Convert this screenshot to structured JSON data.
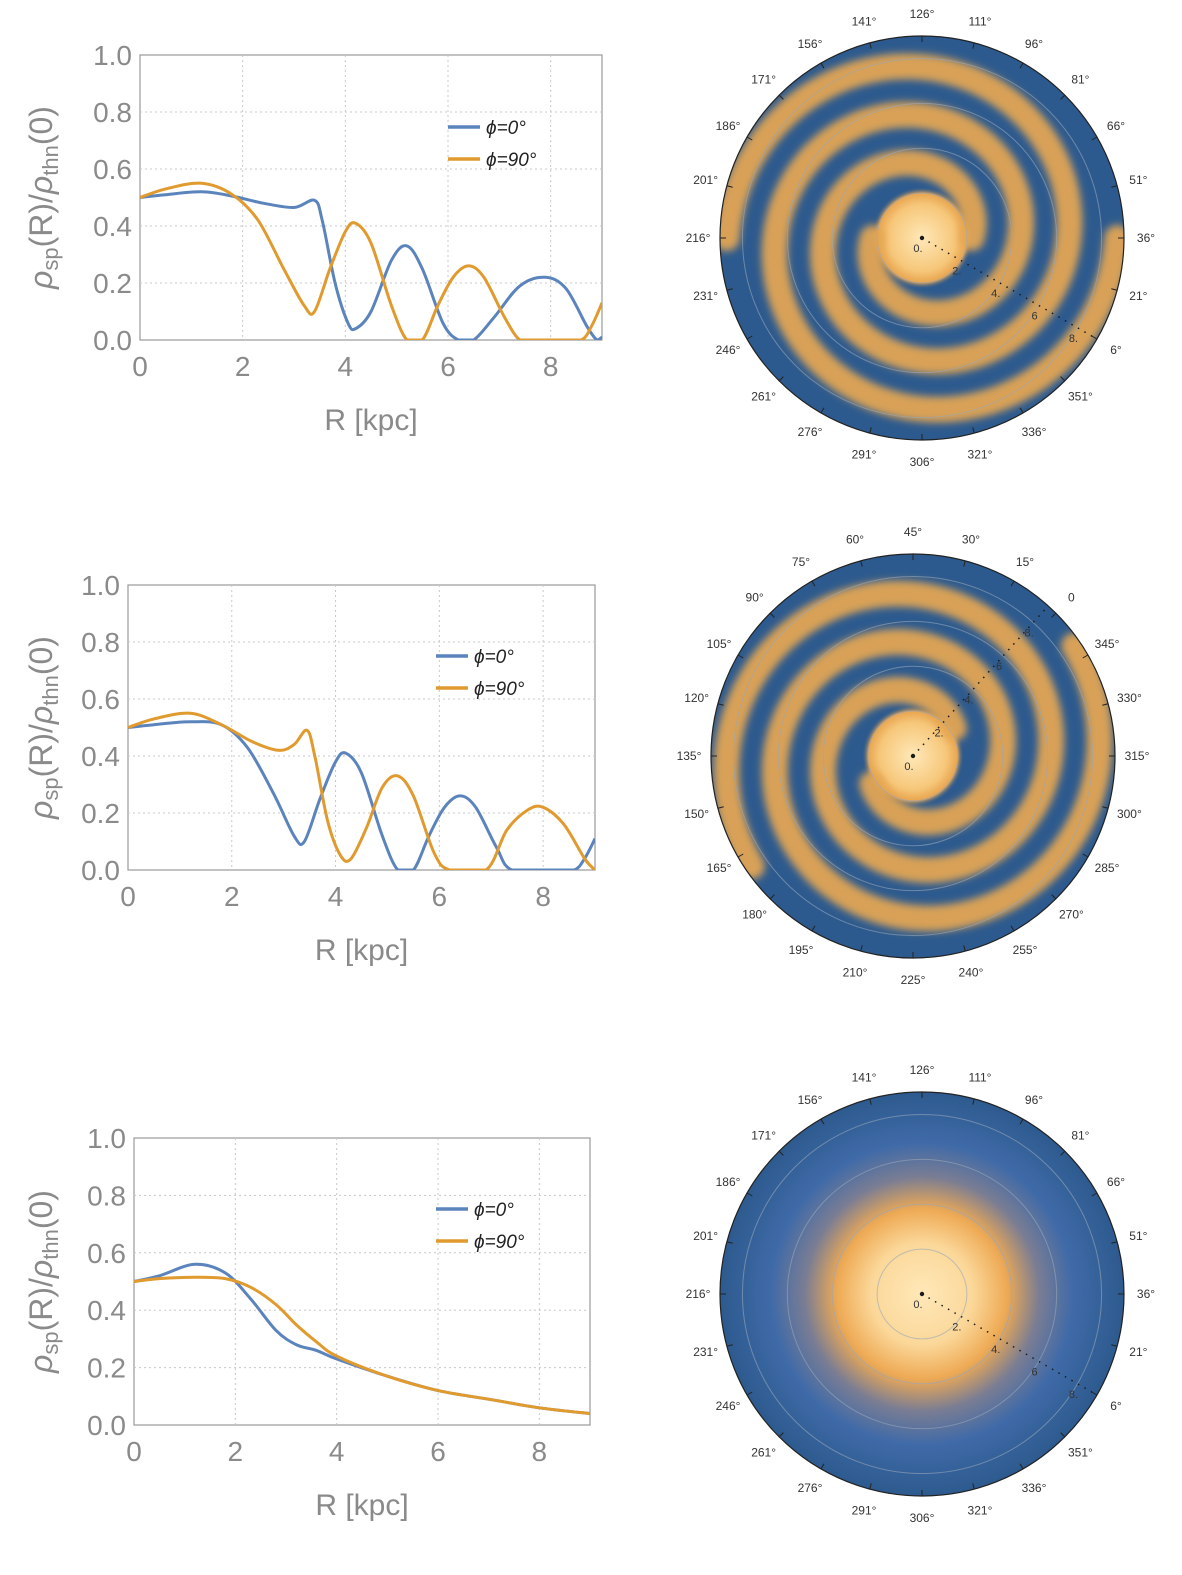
{
  "colors": {
    "blue": "#5b84bd",
    "orange": "#e09a2e",
    "frame": "#9a9a9a",
    "grid": "#c8c8c8",
    "disk_dark": "#2d5a8e",
    "disk_light": "#ffe8b8",
    "arm": "#e6a752",
    "polar_text": "#333333"
  },
  "axis_labels": {
    "ylabel_rho": "ρ",
    "ylabel_sp": "sp",
    "ylabel_mid": "(R)/",
    "ylabel_thn": "thn",
    "ylabel_end": "(0)",
    "xlabel": "R [kpc]"
  },
  "polar_labels": {
    "radius_ticks": [
      "0.",
      "2.",
      "4.",
      "6",
      "8."
    ],
    "panel2_outer_tick": "0"
  },
  "chart_data": [
    {
      "type": "line",
      "panel": "top-left",
      "xlabel": "R [kpc]",
      "ylabel": "ρsp(R)/ρthn(0)",
      "xlim": [
        0,
        9
      ],
      "ylim": [
        0,
        1
      ],
      "xticks": [
        "0",
        "2",
        "4",
        "6",
        "8"
      ],
      "yticks": [
        "0.0",
        "0.2",
        "0.4",
        "0.6",
        "0.8",
        "1.0"
      ],
      "legend_position": "top-right",
      "series": [
        {
          "name": "ϕ=0°",
          "points": [
            [
              0,
              0.5
            ],
            [
              0.5,
              0.51
            ],
            [
              1.2,
              0.52
            ],
            [
              1.8,
              0.505
            ],
            [
              2.4,
              0.48
            ],
            [
              3.0,
              0.465
            ],
            [
              3.4,
              0.49
            ],
            [
              3.55,
              0.42
            ],
            [
              3.8,
              0.2
            ],
            [
              4.05,
              0.06
            ],
            [
              4.2,
              0.04
            ],
            [
              4.5,
              0.1
            ],
            [
              4.9,
              0.28
            ],
            [
              5.2,
              0.33
            ],
            [
              5.5,
              0.25
            ],
            [
              5.9,
              0.06
            ],
            [
              6.2,
              0.0
            ],
            [
              6.5,
              0.0
            ],
            [
              6.9,
              0.08
            ],
            [
              7.4,
              0.19
            ],
            [
              7.9,
              0.22
            ],
            [
              8.3,
              0.18
            ],
            [
              8.7,
              0.05
            ],
            [
              8.9,
              0.0
            ],
            [
              9.0,
              0.01
            ]
          ]
        },
        {
          "name": "ϕ=90°",
          "points": [
            [
              0,
              0.5
            ],
            [
              0.5,
              0.53
            ],
            [
              1.2,
              0.55
            ],
            [
              1.8,
              0.51
            ],
            [
              2.3,
              0.42
            ],
            [
              2.8,
              0.25
            ],
            [
              3.2,
              0.12
            ],
            [
              3.4,
              0.1
            ],
            [
              3.7,
              0.25
            ],
            [
              4.0,
              0.38
            ],
            [
              4.2,
              0.41
            ],
            [
              4.5,
              0.34
            ],
            [
              4.9,
              0.12
            ],
            [
              5.2,
              0.0
            ],
            [
              5.5,
              0.0
            ],
            [
              5.8,
              0.12
            ],
            [
              6.1,
              0.22
            ],
            [
              6.4,
              0.26
            ],
            [
              6.7,
              0.22
            ],
            [
              7.1,
              0.08
            ],
            [
              7.4,
              0.0
            ],
            [
              7.7,
              0.0
            ],
            [
              8.2,
              0.0
            ],
            [
              8.6,
              0.0
            ],
            [
              8.8,
              0.05
            ],
            [
              9.0,
              0.13
            ]
          ]
        }
      ]
    },
    {
      "type": "line",
      "panel": "middle-left",
      "xlabel": "R [kpc]",
      "ylabel": "ρsp(R)/ρthn(0)",
      "xlim": [
        0,
        9
      ],
      "ylim": [
        0,
        1
      ],
      "xticks": [
        "0",
        "2",
        "4",
        "6",
        "8"
      ],
      "yticks": [
        "0.0",
        "0.2",
        "0.4",
        "0.6",
        "0.8",
        "1.0"
      ],
      "legend_position": "top-right",
      "series": [
        {
          "name": "ϕ=0°",
          "points": [
            [
              0,
              0.5
            ],
            [
              0.5,
              0.51
            ],
            [
              1.2,
              0.52
            ],
            [
              1.8,
              0.51
            ],
            [
              2.3,
              0.43
            ],
            [
              2.8,
              0.27
            ],
            [
              3.2,
              0.12
            ],
            [
              3.4,
              0.1
            ],
            [
              3.7,
              0.25
            ],
            [
              4.0,
              0.38
            ],
            [
              4.2,
              0.41
            ],
            [
              4.5,
              0.34
            ],
            [
              4.9,
              0.12
            ],
            [
              5.2,
              0.0
            ],
            [
              5.5,
              0.0
            ],
            [
              5.8,
              0.12
            ],
            [
              6.1,
              0.22
            ],
            [
              6.4,
              0.26
            ],
            [
              6.7,
              0.22
            ],
            [
              7.1,
              0.08
            ],
            [
              7.4,
              0.0
            ],
            [
              8.2,
              0.0
            ],
            [
              8.6,
              0.0
            ],
            [
              8.8,
              0.04
            ],
            [
              9.0,
              0.11
            ]
          ]
        },
        {
          "name": "ϕ=90°",
          "points": [
            [
              0,
              0.5
            ],
            [
              0.5,
              0.53
            ],
            [
              1.2,
              0.55
            ],
            [
              1.8,
              0.51
            ],
            [
              2.4,
              0.45
            ],
            [
              2.9,
              0.42
            ],
            [
              3.2,
              0.44
            ],
            [
              3.45,
              0.49
            ],
            [
              3.6,
              0.4
            ],
            [
              3.85,
              0.17
            ],
            [
              4.1,
              0.05
            ],
            [
              4.3,
              0.04
            ],
            [
              4.6,
              0.15
            ],
            [
              4.9,
              0.29
            ],
            [
              5.2,
              0.33
            ],
            [
              5.5,
              0.26
            ],
            [
              5.9,
              0.06
            ],
            [
              6.2,
              0.0
            ],
            [
              6.9,
              0.0
            ],
            [
              7.3,
              0.14
            ],
            [
              7.7,
              0.21
            ],
            [
              8.0,
              0.22
            ],
            [
              8.4,
              0.16
            ],
            [
              8.8,
              0.04
            ],
            [
              9.0,
              0.0
            ]
          ]
        }
      ]
    },
    {
      "type": "line",
      "panel": "bottom-left",
      "xlabel": "R [kpc]",
      "ylabel": "ρsp(R)/ρthn(0)",
      "xlim": [
        0,
        9
      ],
      "ylim": [
        0,
        1
      ],
      "xticks": [
        "0",
        "2",
        "4",
        "6",
        "8"
      ],
      "yticks": [
        "0.0",
        "0.2",
        "0.4",
        "0.6",
        "0.8",
        "1.0"
      ],
      "legend_position": "top-right",
      "series": [
        {
          "name": "ϕ=0°",
          "points": [
            [
              0,
              0.5
            ],
            [
              0.5,
              0.52
            ],
            [
              1.2,
              0.56
            ],
            [
              1.8,
              0.53
            ],
            [
              2.3,
              0.44
            ],
            [
              2.8,
              0.33
            ],
            [
              3.2,
              0.28
            ],
            [
              3.6,
              0.26
            ],
            [
              4.0,
              0.23
            ],
            [
              5.0,
              0.17
            ],
            [
              6.0,
              0.12
            ],
            [
              7.0,
              0.09
            ],
            [
              8.0,
              0.06
            ],
            [
              9.0,
              0.04
            ]
          ]
        },
        {
          "name": "ϕ=90°",
          "points": [
            [
              0,
              0.5
            ],
            [
              0.5,
              0.51
            ],
            [
              1.2,
              0.515
            ],
            [
              1.8,
              0.51
            ],
            [
              2.3,
              0.48
            ],
            [
              2.8,
              0.42
            ],
            [
              3.2,
              0.35
            ],
            [
              3.6,
              0.29
            ],
            [
              4.0,
              0.24
            ],
            [
              5.0,
              0.17
            ],
            [
              6.0,
              0.12
            ],
            [
              7.0,
              0.09
            ],
            [
              8.0,
              0.06
            ],
            [
              9.0,
              0.04
            ]
          ]
        }
      ]
    },
    {
      "type": "heatmap",
      "subtype": "polar-density",
      "panel": "top-right",
      "angular_ticks": [
        "126°",
        "111°",
        "96°",
        "81°",
        "66°",
        "51°",
        "36°",
        "21°",
        "6°",
        "351°",
        "336°",
        "321°",
        "306°",
        "291°",
        "276°",
        "261°",
        "246°",
        "231°",
        "216°",
        "201°",
        "186°",
        "171°",
        "156°",
        "141°"
      ],
      "radial_ticks": [
        0,
        2,
        4,
        6,
        8
      ],
      "radial_range": [
        0,
        9
      ],
      "radial_axis_angle_label": "6°",
      "structure": "two-armed spiral (4 arm crossings per radius)"
    },
    {
      "type": "heatmap",
      "subtype": "polar-density",
      "panel": "middle-right",
      "angular_ticks": [
        "45°",
        "30°",
        "15°",
        "0",
        "345°",
        "330°",
        "315°",
        "300°",
        "285°",
        "270°",
        "255°",
        "240°",
        "225°",
        "210°",
        "195°",
        "180°",
        "165°",
        "150°",
        "135°",
        "120°",
        "105°",
        "90°",
        "75°",
        "60°"
      ],
      "radial_ticks": [
        0,
        2,
        4,
        6,
        8
      ],
      "radial_range": [
        0,
        9
      ],
      "radial_axis_angle_label": "0",
      "structure": "two-armed spiral (4 arm crossings per radius)"
    },
    {
      "type": "heatmap",
      "subtype": "polar-density",
      "panel": "bottom-right",
      "angular_ticks": [
        "126°",
        "111°",
        "96°",
        "81°",
        "66°",
        "51°",
        "36°",
        "21°",
        "6°",
        "351°",
        "336°",
        "321°",
        "306°",
        "291°",
        "276°",
        "261°",
        "246°",
        "231°",
        "216°",
        "201°",
        "186°",
        "171°",
        "156°",
        "141°"
      ],
      "radial_ticks": [
        0,
        2,
        4,
        6,
        8
      ],
      "radial_range": [
        0,
        9
      ],
      "radial_axis_angle_label": "6°",
      "structure": "smooth axisymmetric central bulge"
    }
  ]
}
